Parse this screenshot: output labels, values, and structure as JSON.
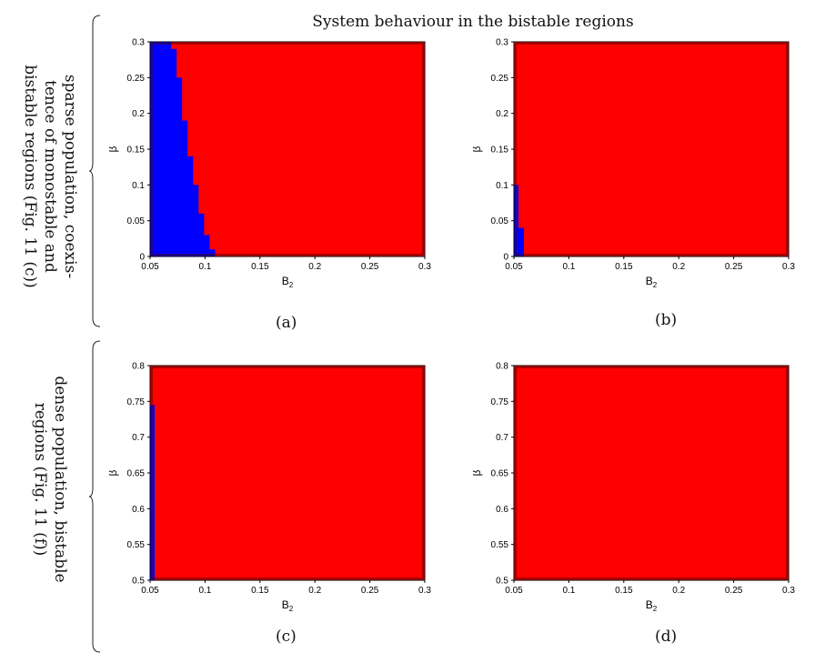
{
  "title": "System behaviour in the bistable regions",
  "row_labels": {
    "top": [
      "sparse population, coexis-",
      "tence of monostable and",
      "bistable regions (Fig. 11 (c))"
    ],
    "bottom": [
      "dense population, bistable",
      "regions (Fig. 11 (f))"
    ]
  },
  "colors": {
    "region_1": "#0000ff",
    "region_2": "#ff0000",
    "frame": "#000000"
  },
  "chart_data": [
    {
      "type": "heatmap",
      "caption": "(a)",
      "xlabel": "B2",
      "ylabel": "β",
      "xlim": [
        0.05,
        0.3
      ],
      "ylim": [
        0,
        0.3
      ],
      "xticks": [
        "0.05",
        "0.1",
        "0.15",
        "0.2",
        "0.25",
        "0.3"
      ],
      "yticks": [
        "0",
        "0.05",
        "0.1",
        "0.15",
        "0.2",
        "0.25",
        "0.3"
      ],
      "blue_region_boundary": {
        "beta": [
          0,
          0.01,
          0.02,
          0.03,
          0.04,
          0.05,
          0.06,
          0.07,
          0.08,
          0.09,
          0.1,
          0.11,
          0.12,
          0.13,
          0.14,
          0.15,
          0.16,
          0.17,
          0.18,
          0.19,
          0.2,
          0.21,
          0.22,
          0.23,
          0.24,
          0.25,
          0.26,
          0.27,
          0.28,
          0.29,
          0.3
        ],
        "B2_max": [
          0.105,
          0.1,
          0.1,
          0.095,
          0.095,
          0.095,
          0.09,
          0.09,
          0.09,
          0.09,
          0.085,
          0.085,
          0.085,
          0.085,
          0.08,
          0.08,
          0.08,
          0.08,
          0.08,
          0.075,
          0.075,
          0.075,
          0.075,
          0.075,
          0.075,
          0.07,
          0.07,
          0.07,
          0.07,
          0.065,
          0.065
        ]
      }
    },
    {
      "type": "heatmap",
      "caption": "(b)",
      "xlabel": "B2",
      "ylabel": "β",
      "xlim": [
        0.05,
        0.3
      ],
      "ylim": [
        0,
        0.3
      ],
      "xticks": [
        "0.05",
        "0.1",
        "0.15",
        "0.2",
        "0.25",
        "0.3"
      ],
      "yticks": [
        "0",
        "0.05",
        "0.1",
        "0.15",
        "0.2",
        "0.25",
        "0.3"
      ],
      "blue_region_boundary": {
        "beta": [
          0,
          0.01,
          0.02,
          0.03,
          0.04,
          0.05,
          0.06,
          0.07,
          0.08,
          0.09
        ],
        "B2_max": [
          0.055,
          0.055,
          0.055,
          0.055,
          0.05,
          0.05,
          0.05,
          0.05,
          0.05,
          0.05
        ]
      }
    },
    {
      "type": "heatmap",
      "caption": "(c)",
      "xlabel": "B2",
      "ylabel": "β",
      "xlim": [
        0.05,
        0.3
      ],
      "ylim": [
        0.5,
        0.8
      ],
      "xticks": [
        "0.05",
        "0.1",
        "0.15",
        "0.2",
        "0.25",
        "0.3"
      ],
      "yticks": [
        "0.5",
        "0.55",
        "0.6",
        "0.65",
        "0.7",
        "0.75",
        "0.8"
      ],
      "blue_region_boundary": {
        "beta": [
          0.5,
          0.735
        ],
        "B2_max": [
          0.05,
          0.05
        ]
      }
    },
    {
      "type": "heatmap",
      "caption": "(d)",
      "xlabel": "B2",
      "ylabel": "β",
      "xlim": [
        0.05,
        0.3
      ],
      "ylim": [
        0.5,
        0.8
      ],
      "xticks": [
        "0.05",
        "0.1",
        "0.15",
        "0.2",
        "0.25",
        "0.3"
      ],
      "yticks": [
        "0.5",
        "0.55",
        "0.6",
        "0.65",
        "0.7",
        "0.75",
        "0.8"
      ],
      "blue_region_boundary": {
        "beta": [],
        "B2_max": []
      }
    }
  ]
}
